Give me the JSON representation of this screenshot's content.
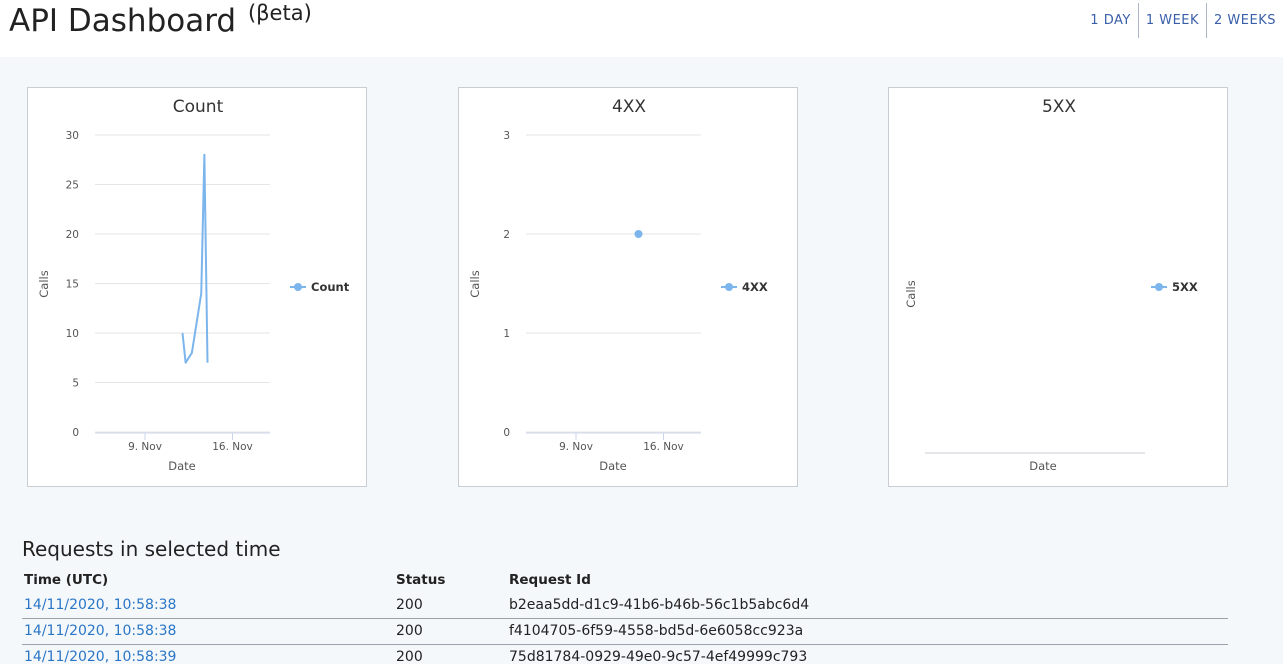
{
  "header": {
    "title": "API Dashboard",
    "beta": "(βeta)",
    "ranges": [
      "1 DAY",
      "1 WEEK",
      "2 WEEKS"
    ]
  },
  "colors": {
    "series": "#7cb5ec",
    "link": "#2a76c6",
    "accent": "#3a5fa8"
  },
  "chart_data": [
    {
      "type": "line",
      "title": "Count",
      "xlabel": "Date",
      "ylabel": "Calls",
      "xlim": [
        "2020-11-05",
        "2020-11-19"
      ],
      "ylim": [
        0,
        30
      ],
      "yticks": [
        0,
        5,
        10,
        15,
        20,
        25,
        30
      ],
      "xticks": [
        {
          "date": "2020-11-09",
          "label": "9. Nov"
        },
        {
          "date": "2020-11-16",
          "label": "16. Nov"
        }
      ],
      "grid": true,
      "legend": "right",
      "series": [
        {
          "name": "Count",
          "x": [
            "2020-11-12 00:00",
            "2020-11-12 06:00",
            "2020-11-12 18:00",
            "2020-11-13 12:00",
            "2020-11-13 18:00",
            "2020-11-14 00:00"
          ],
          "y": [
            10,
            7,
            8,
            14,
            28,
            7
          ]
        }
      ]
    },
    {
      "type": "scatter",
      "title": "4XX",
      "xlabel": "Date",
      "ylabel": "Calls",
      "xlim": [
        "2020-11-05",
        "2020-11-19"
      ],
      "ylim": [
        0,
        3
      ],
      "yticks": [
        0,
        1,
        2,
        3
      ],
      "xticks": [
        {
          "date": "2020-11-09",
          "label": "9. Nov"
        },
        {
          "date": "2020-11-16",
          "label": "16. Nov"
        }
      ],
      "grid": true,
      "legend": "right",
      "series": [
        {
          "name": "4XX",
          "x": [
            "2020-11-14 00:00"
          ],
          "y": [
            2
          ]
        }
      ]
    },
    {
      "type": "line",
      "title": "5XX",
      "xlabel": "Date",
      "ylabel": "Calls",
      "grid": false,
      "legend": "right",
      "series": [
        {
          "name": "5XX",
          "x": [],
          "y": []
        }
      ]
    }
  ],
  "requests": {
    "title": "Requests in selected time",
    "columns": [
      "Time (UTC)",
      "Status",
      "Request Id"
    ],
    "rows": [
      {
        "time": "14/11/2020, 10:58:38",
        "status": "200",
        "id": "b2eaa5dd-d1c9-41b6-b46b-56c1b5abc6d4"
      },
      {
        "time": "14/11/2020, 10:58:38",
        "status": "200",
        "id": "f4104705-6f59-4558-bd5d-6e6058cc923a"
      },
      {
        "time": "14/11/2020, 10:58:39",
        "status": "200",
        "id": "75d81784-0929-49e0-9c57-4ef49999c793"
      }
    ]
  }
}
